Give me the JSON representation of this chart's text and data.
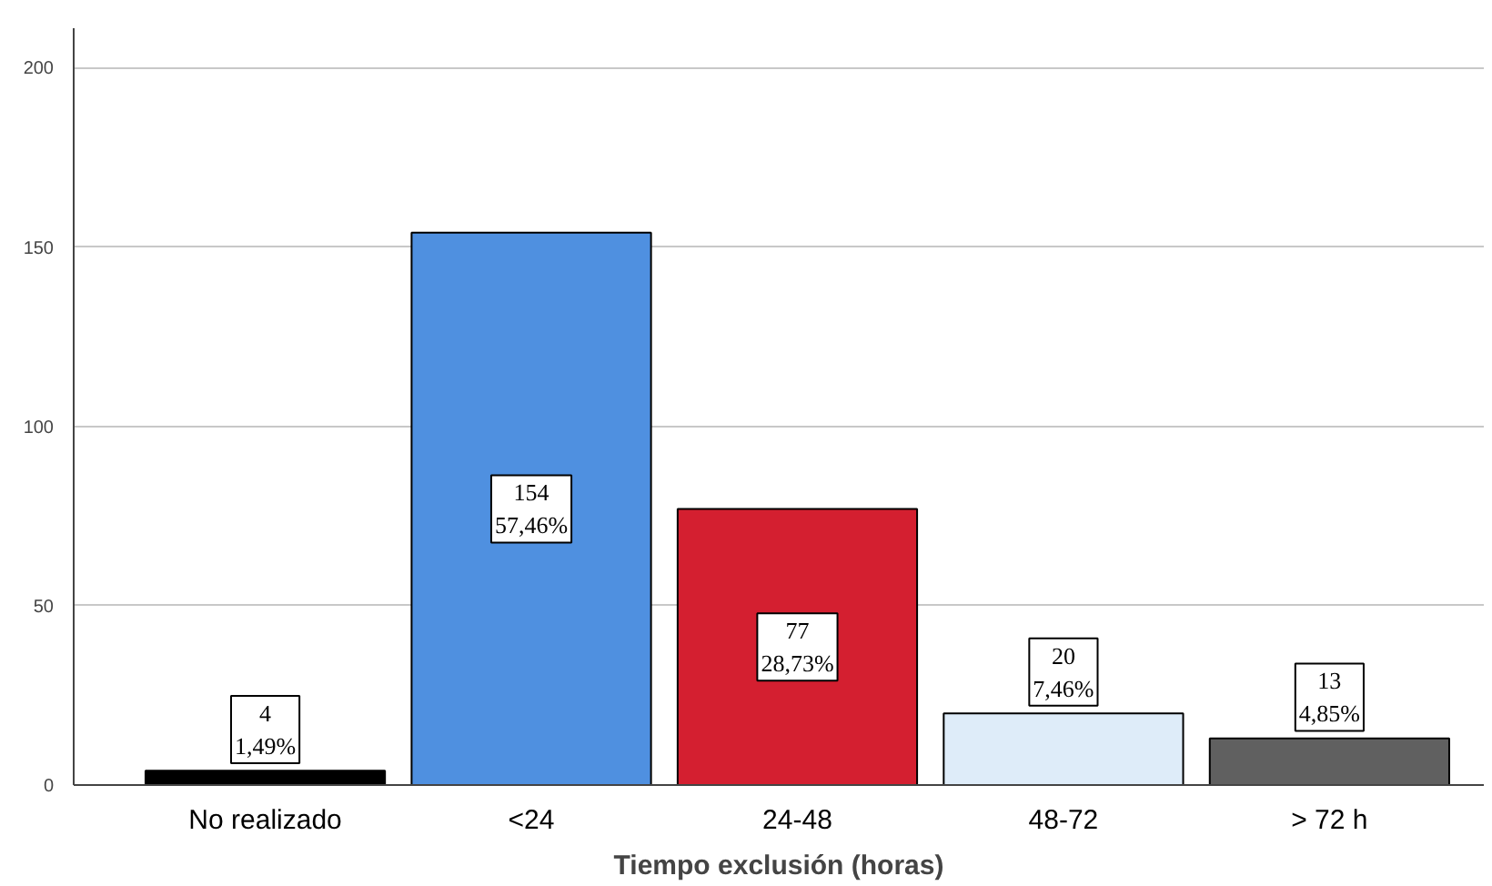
{
  "chart_data": {
    "type": "bar",
    "xlabel": "Tiempo exclusión (horas)",
    "categories": [
      "No realizado",
      "<24",
      "24-48",
      "48-72",
      "> 72 h"
    ],
    "values": [
      4,
      154,
      77,
      20,
      13
    ],
    "colors": [
      "#000000",
      "#4f90e0",
      "#d41f30",
      "#deecf9",
      "#606060"
    ],
    "value_labels": [
      "4\n1,49%",
      "154\n57,46%",
      "77\n28,73%",
      "20\n7,46%",
      "13\n4,85%"
    ],
    "ylim": [
      0,
      211
    ],
    "yticks": [
      0,
      50,
      100,
      150,
      200
    ],
    "grid": "y"
  }
}
